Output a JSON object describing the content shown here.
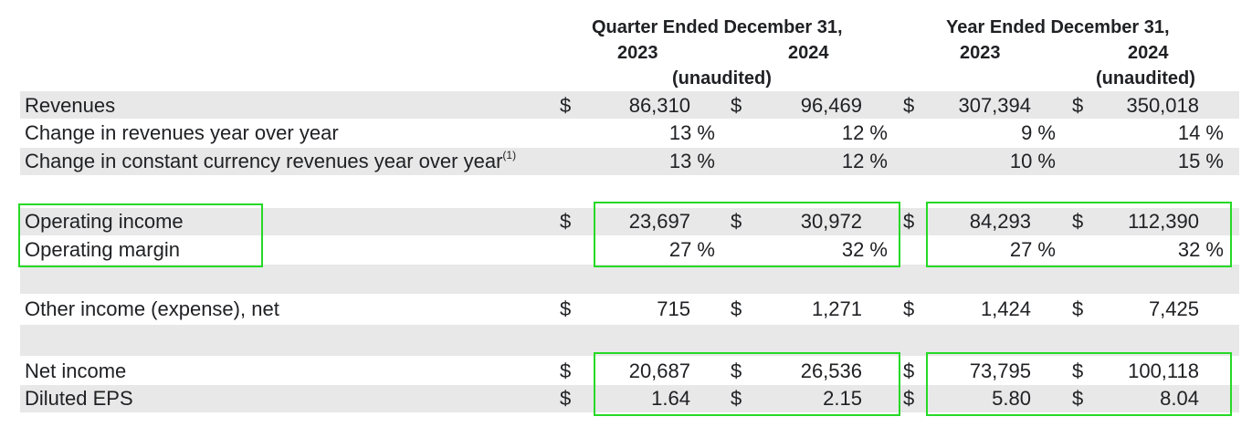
{
  "header": {
    "quarter_title": "Quarter Ended December 31,",
    "year_title": "Year Ended December 31,",
    "q_2023": "2023",
    "q_2024": "2024",
    "y_2023": "2023",
    "y_2024": "2024",
    "q_unaudited": "(unaudited)",
    "y_unaudited": "(unaudited)"
  },
  "rows": [
    {
      "label": "Revenues",
      "sup": "",
      "d1": "$",
      "v1": "86,310",
      "d2": "$",
      "v2": "96,469",
      "d3": "$",
      "v3": "307,394",
      "d4": "$",
      "v4": "350,018"
    },
    {
      "label": "Change in revenues year over year",
      "sup": "",
      "d1": "",
      "v1": "13 %",
      "d2": "",
      "v2": "12 %",
      "d3": "",
      "v3": "9 %",
      "d4": "",
      "v4": "14 %"
    },
    {
      "label": "Change in constant currency revenues year over year",
      "sup": "(1)",
      "d1": "",
      "v1": "13 %",
      "d2": "",
      "v2": "12 %",
      "d3": "",
      "v3": "10 %",
      "d4": "",
      "v4": "15 %"
    },
    {
      "label": "Operating income",
      "sup": "",
      "d1": "$",
      "v1": "23,697",
      "d2": "$",
      "v2": "30,972",
      "d3": "$",
      "v3": "84,293",
      "d4": "$",
      "v4": "112,390"
    },
    {
      "label": "Operating margin",
      "sup": "",
      "d1": "",
      "v1": "27 %",
      "d2": "",
      "v2": "32 %",
      "d3": "",
      "v3": "27 %",
      "d4": "",
      "v4": "32 %"
    },
    {
      "label": "Other income (expense), net",
      "sup": "",
      "d1": "$",
      "v1": "715",
      "d2": "$",
      "v2": "1,271",
      "d3": "$",
      "v3": "1,424",
      "d4": "$",
      "v4": "7,425"
    },
    {
      "label": "Net income",
      "sup": "",
      "d1": "$",
      "v1": "20,687",
      "d2": "$",
      "v2": "26,536",
      "d3": "$",
      "v3": "73,795",
      "d4": "$",
      "v4": "100,118"
    },
    {
      "label": "Diluted EPS",
      "sup": "",
      "d1": "$",
      "v1": "1.64",
      "d2": "$",
      "v2": "2.15",
      "d3": "$",
      "v3": "5.80",
      "d4": "$",
      "v4": "8.04"
    }
  ],
  "colors": {
    "band": "#e8e8e8",
    "highlight": "#26d926",
    "text": "#202124"
  }
}
